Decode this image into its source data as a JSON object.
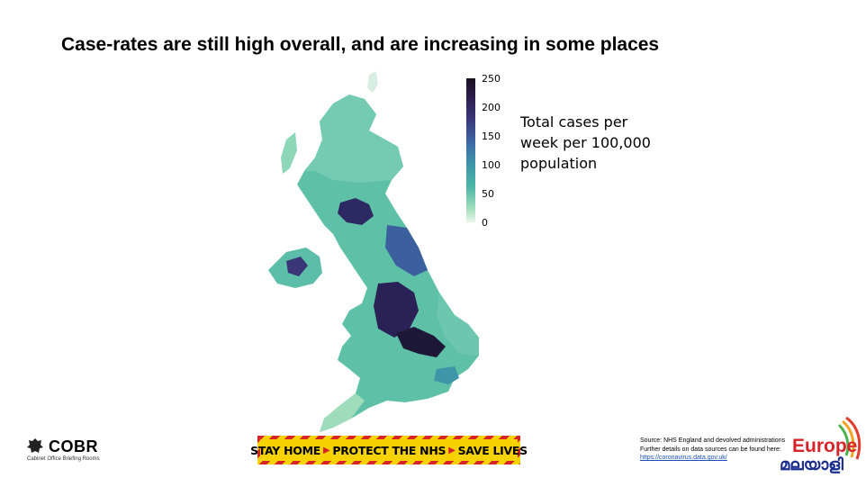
{
  "slide": {
    "title": "Case-rates are still high overall, and are increasing in some places"
  },
  "chart_data": {
    "type": "heatmap",
    "title": "Case-rates are still high overall, and are increasing in some places",
    "legend_title": "Total cases per week per 100,000 population",
    "colorbar": {
      "min": 0,
      "max": 250,
      "ticks": [
        "250",
        "200",
        "150",
        "100",
        "50",
        "0"
      ],
      "colors": [
        "#e8f6e8",
        "#9fdcbb",
        "#4fb8a6",
        "#3e95a9",
        "#3d6aa6",
        "#3a3577",
        "#2b1d4a",
        "#17111f"
      ]
    }
  },
  "legend": {
    "line1": "Total cases per",
    "line2": "week per 100,000",
    "line3": "population"
  },
  "footer": {
    "org_name": "COBR",
    "org_subtitle": "Cabinet Office Briefing Rooms",
    "banner": [
      "STAY HOME",
      "PROTECT THE NHS",
      "SAVE LIVES"
    ],
    "source_line1": "Source: NHS England and devolved administrations",
    "source_line2": "Further details on data sources can be found here:",
    "source_link": "https://coronavirus.data.gov.uk/",
    "watermark_top": "Europe",
    "watermark_bottom": "മലയാളി"
  },
  "colors": {
    "banner_yellow": "#f6d200",
    "banner_red": "#d7232a",
    "low": "#8fd6b6",
    "mid": "#3d8ea8",
    "high": "#2a2257"
  }
}
